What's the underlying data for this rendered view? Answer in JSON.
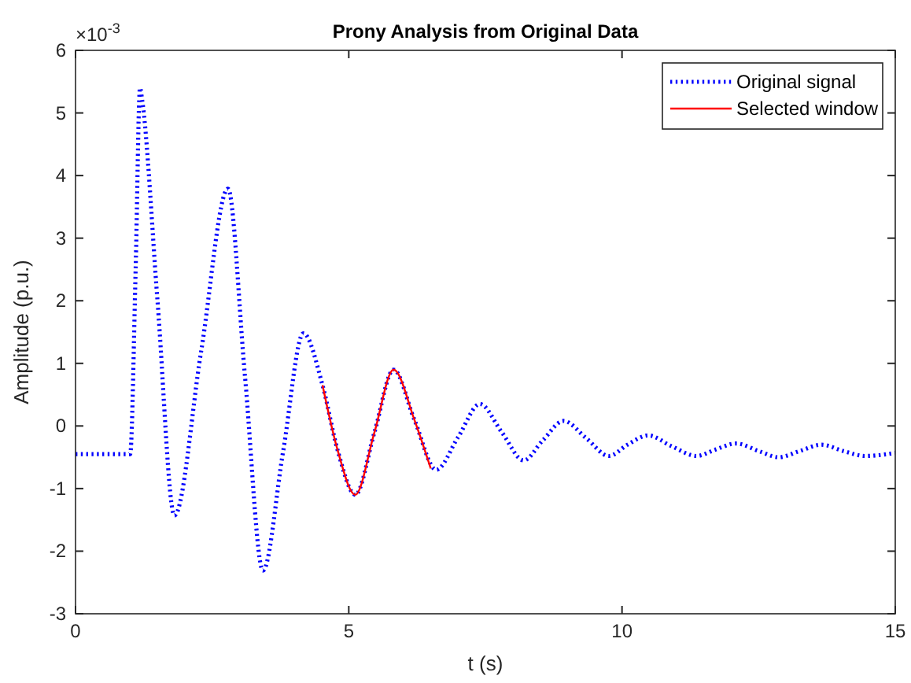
{
  "chart_data": {
    "type": "line",
    "title": "Prony Analysis from Original Data",
    "xlabel": "t (s)",
    "ylabel": "Amplitude (p.u.)",
    "annotations": [
      "×10$^{-3}$"
    ],
    "xlim": [
      0,
      15
    ],
    "xticks": [
      0,
      5,
      10,
      15
    ],
    "ylim": [
      -3,
      6
    ],
    "yticks": [
      -3,
      -2,
      -1,
      0,
      1,
      2,
      3,
      4,
      5,
      6
    ],
    "grid": false,
    "legend": "top right",
    "marker": "none",
    "series": [
      {
        "name": "Original signal",
        "color": "#0000ff",
        "line_style": "dotted",
        "x": [
          0,
          1.0,
          1.1,
          1.18,
          1.22,
          1.5,
          1.81,
          2.3,
          2.79,
          3.1,
          3.43,
          3.8,
          4.17,
          4.52,
          4.8,
          5.12,
          5.47,
          5.82,
          6.2,
          6.6,
          7.0,
          7.4,
          7.8,
          8.2,
          8.55,
          8.93,
          9.35,
          9.76,
          10.1,
          10.48,
          10.9,
          11.37,
          11.7,
          12.09,
          12.5,
          12.87,
          13.25,
          13.65,
          14.05,
          14.45,
          15
        ],
        "values": [
          -0.45,
          -0.45,
          2.5,
          5.4,
          5.2,
          2.0,
          -1.43,
          1.2,
          3.79,
          0.8,
          -2.31,
          -0.4,
          1.48,
          0.65,
          -0.4,
          -1.1,
          -0.1,
          0.9,
          0.1,
          -0.7,
          -0.18,
          0.35,
          -0.1,
          -0.55,
          -0.23,
          0.08,
          -0.2,
          -0.48,
          -0.3,
          -0.15,
          -0.32,
          -0.48,
          -0.38,
          -0.28,
          -0.4,
          -0.5,
          -0.4,
          -0.3,
          -0.4,
          -0.48,
          -0.43
        ]
      },
      {
        "name": "Selected window",
        "color": "#ff0000",
        "line_style": "solid",
        "x": [
          4.52,
          4.8,
          5.12,
          5.47,
          5.82,
          6.2,
          6.5
        ],
        "values": [
          0.65,
          -0.4,
          -1.1,
          -0.1,
          0.9,
          0.1,
          -0.68
        ]
      }
    ]
  }
}
